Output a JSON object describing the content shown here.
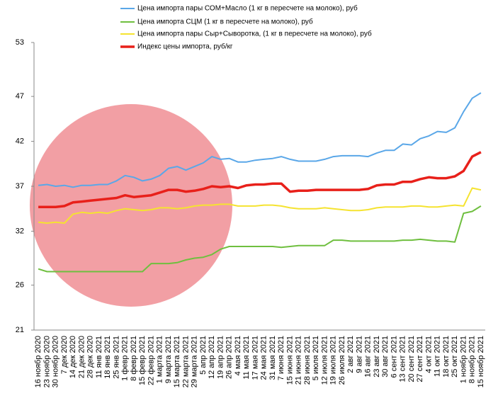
{
  "chart_data": {
    "type": "line",
    "categories": [
      "16 ноябр 2020",
      "23 ноябр 2020",
      "30 ноябр 2020",
      "7 дек 2020",
      "14 дек 2020",
      "21 дек 2020",
      "28 дек 2020",
      "11 янв 2021",
      "18 янв 2021",
      "25 янв 2021",
      "1 февр 2021",
      "8 февр 2021",
      "15 февр 2021",
      "22 февр 2021",
      "1 марта 2021",
      "9 марта 2021",
      "15 марта 2021",
      "22 марта 2021",
      "29 марта 2021",
      "5 апр 2021",
      "12 апр 2021",
      "19 апр 2021",
      "26 апр 2021",
      "4 мая 2021",
      "11 мая 2021",
      "17 мая 2021",
      "24 мая 2021",
      "31 мая 2021",
      "7 июня 2021",
      "15 июня 2021",
      "21 июня 2021",
      "28 июня 2021",
      "5 июля 2021",
      "12 июля 2021",
      "19 июля 2021",
      "26 июля 2021",
      "2 авг 2021",
      "9 авг 2021",
      "16 авг 2021",
      "23 авг 2021",
      "30 авг 2021",
      "6 сент 2021",
      "13 сент 2021",
      "20 сент 2021",
      "27 сент 2021",
      "4 окт 2021",
      "11 окт 2021",
      "18 окт 2021",
      "25 окт 2021",
      "1 ноябр 2021",
      "8 ноябр 2021",
      "15 ноябр 2021"
    ],
    "series": [
      {
        "name": "Цена  импорта пары СОМ+Масло  (1 кг в пересчете на молоко), руб",
        "color": "#5aa7e8",
        "width": 2,
        "values": [
          37.1,
          37.2,
          37.0,
          37.1,
          36.9,
          37.1,
          37.1,
          37.2,
          37.2,
          37.6,
          38.2,
          38.0,
          37.6,
          37.8,
          38.2,
          39.0,
          39.2,
          38.8,
          39.2,
          39.6,
          40.3,
          40.0,
          40.1,
          39.7,
          39.7,
          39.9,
          40.0,
          40.1,
          40.3,
          40.0,
          39.8,
          39.8,
          39.8,
          40.0,
          40.3,
          40.4,
          40.4,
          40.4,
          40.3,
          40.7,
          41.0,
          41.0,
          41.7,
          41.6,
          42.3,
          42.6,
          43.1,
          43.0,
          43.5,
          45.3,
          46.8,
          47.4
        ]
      },
      {
        "name": "Цена  импорта СЦМ  (1 кг в пересчете на молоко), руб",
        "color": "#6fbf3f",
        "width": 2,
        "values": [
          27.8,
          27.5,
          27.5,
          27.5,
          27.5,
          27.5,
          27.5,
          27.5,
          27.5,
          27.5,
          27.5,
          27.5,
          27.5,
          28.4,
          28.4,
          28.4,
          28.5,
          28.8,
          29.0,
          29.1,
          29.4,
          30.0,
          30.3,
          30.3,
          30.3,
          30.3,
          30.3,
          30.3,
          30.2,
          30.3,
          30.4,
          30.4,
          30.4,
          30.4,
          31.0,
          31.0,
          30.9,
          30.9,
          30.9,
          30.9,
          30.9,
          30.9,
          31.0,
          31.0,
          31.1,
          31.0,
          30.9,
          30.9,
          30.8,
          34.0,
          34.2,
          34.8
        ]
      },
      {
        "name": "Цена  импорта пары Сыр+Сыворотка,  (1 кг в пересчете на молоко), руб",
        "color": "#f5e330",
        "width": 2,
        "values": [
          33.0,
          32.9,
          33.0,
          32.9,
          33.9,
          34.1,
          34.0,
          34.1,
          34.0,
          34.3,
          34.5,
          34.4,
          34.3,
          34.4,
          34.6,
          34.6,
          34.5,
          34.6,
          34.8,
          34.9,
          34.9,
          35.0,
          35.0,
          34.8,
          34.8,
          34.8,
          34.9,
          34.9,
          34.8,
          34.6,
          34.5,
          34.5,
          34.5,
          34.6,
          34.5,
          34.4,
          34.3,
          34.3,
          34.4,
          34.6,
          34.7,
          34.7,
          34.7,
          34.8,
          34.8,
          34.7,
          34.7,
          34.8,
          34.9,
          34.8,
          36.8,
          36.6
        ]
      },
      {
        "name": "Индекс цены импорта, руб/кг",
        "color": "#e8201a",
        "width": 3.5,
        "values": [
          34.7,
          34.7,
          34.7,
          34.8,
          35.2,
          35.3,
          35.4,
          35.5,
          35.6,
          35.7,
          36.0,
          35.8,
          35.9,
          36.0,
          36.3,
          36.6,
          36.6,
          36.4,
          36.5,
          36.7,
          37.0,
          36.9,
          37.0,
          36.8,
          37.1,
          37.2,
          37.2,
          37.3,
          37.3,
          36.4,
          36.5,
          36.5,
          36.6,
          36.6,
          36.6,
          36.6,
          36.6,
          36.6,
          36.7,
          37.1,
          37.2,
          37.2,
          37.5,
          37.5,
          37.8,
          38.0,
          37.9,
          37.9,
          38.1,
          38.7,
          40.3,
          40.8
        ]
      }
    ],
    "ylim": [
      21,
      53
    ],
    "yticks": [
      21,
      26,
      32,
      37,
      42,
      47,
      53
    ],
    "grid": false
  }
}
